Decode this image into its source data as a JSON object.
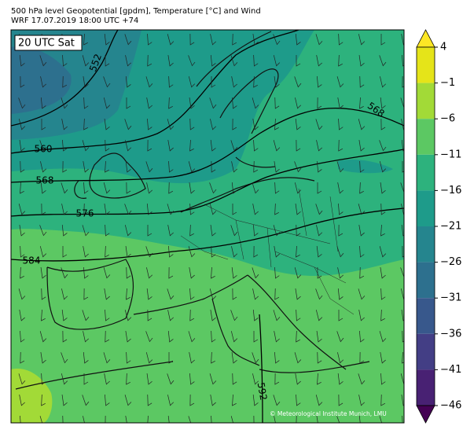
{
  "header": {
    "line1": "500 hPa level Geopotential [gpdm], Temperature [°C] and Wind",
    "line2": "WRF 17.07.2019 18:00 UTC +74"
  },
  "time_label": "20 UTC Sat",
  "contour_labels": [
    552,
    560,
    568,
    576,
    584,
    592,
    568
  ],
  "copyright": "© Meteorological Institute Munich, LMU",
  "colorbar": {
    "ticks": [
      4,
      {
        "value": -1,
        "label": "−1"
      },
      {
        "value": -6,
        "label": "−6"
      },
      {
        "value": -11,
        "label": "−11"
      },
      {
        "value": -16,
        "label": "−16"
      },
      {
        "value": -21,
        "label": "−21"
      },
      {
        "value": -26,
        "label": "−26"
      },
      {
        "value": -31,
        "label": "−31"
      },
      {
        "value": -36,
        "label": "−36"
      },
      {
        "value": -41,
        "label": "−41"
      },
      {
        "value": -46,
        "label": "−46"
      }
    ],
    "colors": [
      "#fde725",
      "#e5e419",
      "#a2da37",
      "#5cc863",
      "#2db27d",
      "#1e9b8a",
      "#25858e",
      "#2d708e",
      "#38588c",
      "#433e85",
      "#482173",
      "#440154"
    ]
  }
}
